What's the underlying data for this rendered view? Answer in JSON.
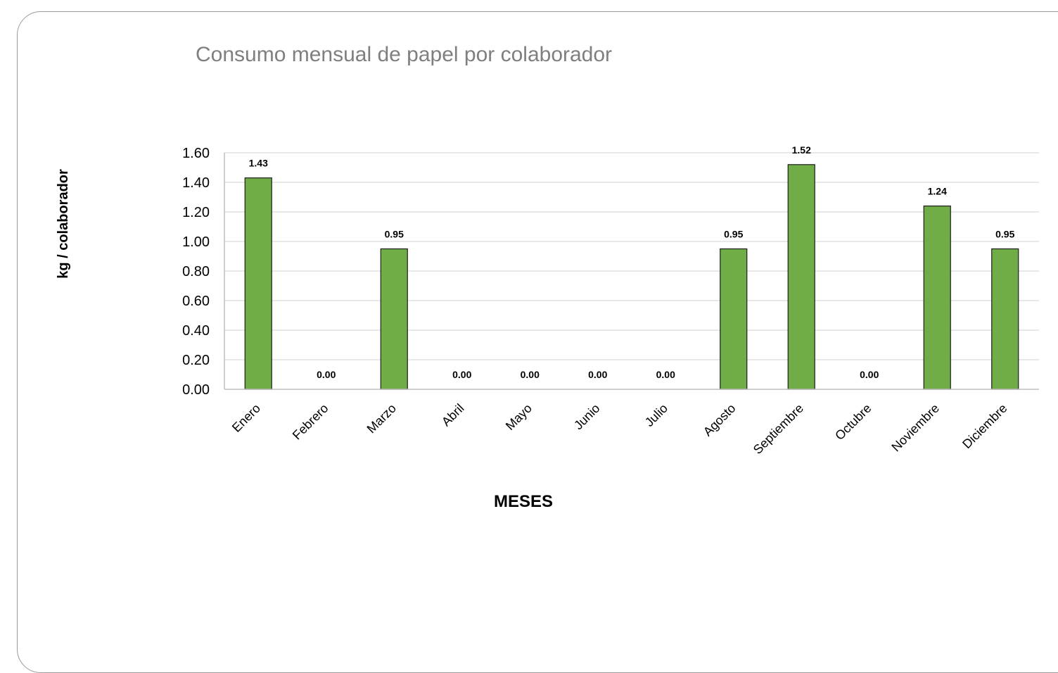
{
  "chart_data": {
    "type": "bar",
    "title": "Consumo mensual de papel por colaborador",
    "xlabel": "MESES",
    "ylabel": "kg / colaborador",
    "categories": [
      "Enero",
      "Febrero",
      "Marzo",
      "Abril",
      "Mayo",
      "Junio",
      "Julio",
      "Agosto",
      "Septiembre",
      "Octubre",
      "Noviembre",
      "Diciembre"
    ],
    "values": [
      1.43,
      0.0,
      0.95,
      0.0,
      0.0,
      0.0,
      0.0,
      0.95,
      1.52,
      0.0,
      1.24,
      0.95
    ],
    "data_labels": [
      "1.43",
      "0.00",
      "0.95",
      "0.00",
      "0.00",
      "0.00",
      "0.00",
      "0.95",
      "1.52",
      "0.00",
      "1.24",
      "0.95"
    ],
    "ylim": [
      0,
      1.6
    ],
    "yticks": [
      "0.00",
      "0.20",
      "0.40",
      "0.60",
      "0.80",
      "1.00",
      "1.20",
      "1.40",
      "1.60"
    ],
    "grid": true,
    "legend": "none",
    "colors": {
      "bar_fill": "#70ad47",
      "bar_stroke": "#1f1f1f",
      "grid": "#d9d9d9",
      "title": "#7f7f7f"
    }
  }
}
